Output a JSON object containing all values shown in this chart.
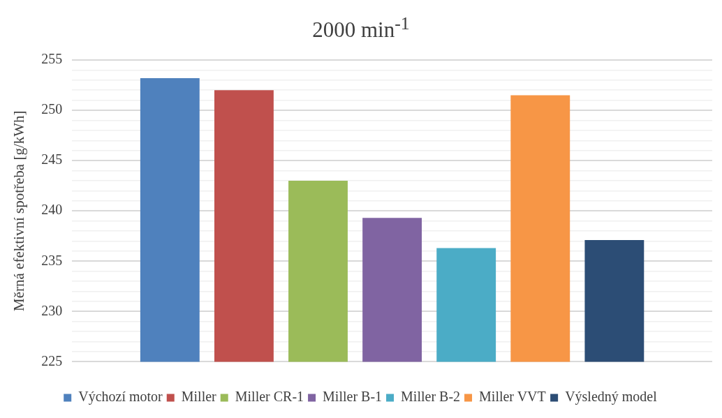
{
  "chart_data": {
    "type": "bar",
    "title": "2000 min$^{-1}$",
    "ylabel": "Měrná efektivní spotřeba [g/kWh]",
    "categories": [
      null
    ],
    "series": [
      {
        "name": "Výchozí motor",
        "color": "#4f81bd",
        "values": [
          253.2
        ]
      },
      {
        "name": "Miller",
        "color": "#c0504d",
        "values": [
          252.0
        ]
      },
      {
        "name": "Miller CR-1",
        "color": "#9bbb59",
        "values": [
          243.0
        ]
      },
      {
        "name": "Miller B-1",
        "color": "#8064a2",
        "values": [
          239.3
        ]
      },
      {
        "name": "Miller B-2",
        "color": "#4bacc6",
        "values": [
          236.3
        ]
      },
      {
        "name": "Miller VVT",
        "color": "#f79646",
        "values": [
          251.5
        ]
      },
      {
        "name": "Výsledný model",
        "color": "#2c4d75",
        "values": [
          237.1
        ]
      }
    ],
    "ylim": [
      225,
      255
    ],
    "yticks": [
      225,
      {
        "value": 226,
        "label": null
      },
      {
        "value": 227,
        "label": null
      },
      {
        "value": 228,
        "label": null
      },
      {
        "value": 229,
        "label": null
      },
      230,
      {
        "value": 231,
        "label": null
      },
      {
        "value": 232,
        "label": null
      },
      {
        "value": 233,
        "label": null
      },
      {
        "value": 234,
        "label": null
      },
      235,
      {
        "value": 236,
        "label": null
      },
      {
        "value": 237,
        "label": null
      },
      {
        "value": 238,
        "label": null
      },
      {
        "value": 239,
        "label": null
      },
      240,
      {
        "value": 241,
        "label": null
      },
      {
        "value": 242,
        "label": null
      },
      {
        "value": 243,
        "label": null
      },
      {
        "value": 244,
        "label": null
      },
      245,
      {
        "value": 246,
        "label": null
      },
      {
        "value": 247,
        "label": null
      },
      {
        "value": 248,
        "label": null
      },
      {
        "value": 249,
        "label": null
      },
      250,
      {
        "value": 251,
        "label": null
      },
      {
        "value": 252,
        "label": null
      },
      {
        "value": 253,
        "label": null
      },
      {
        "value": 254,
        "label": null
      },
      255
    ],
    "grid": "y",
    "legend": "bottom"
  }
}
